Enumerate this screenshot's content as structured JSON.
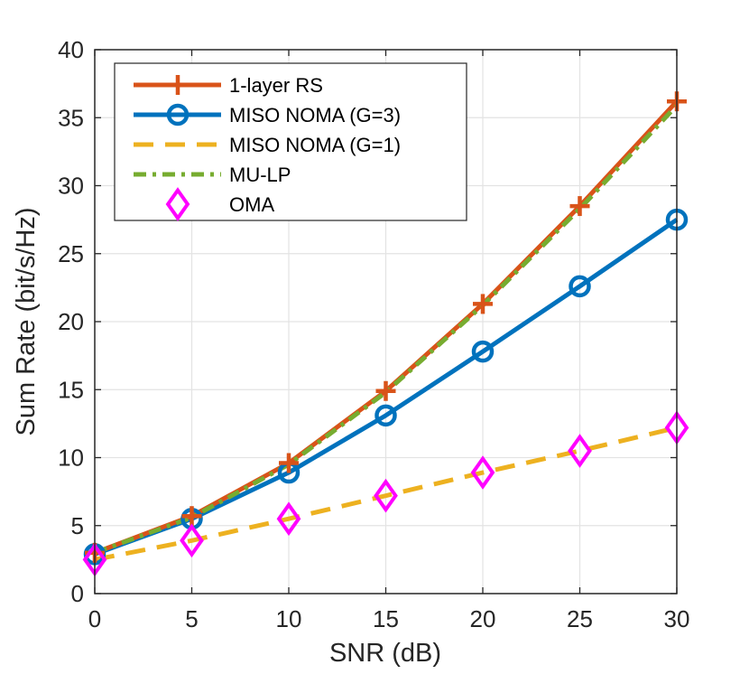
{
  "chart_data": {
    "type": "line",
    "title": "",
    "xlabel": "SNR (dB)",
    "ylabel": "Sum Rate (bit/s/Hz)",
    "xlim": [
      0,
      30
    ],
    "ylim": [
      0,
      40
    ],
    "xticks": [
      0,
      5,
      10,
      15,
      20,
      25,
      30
    ],
    "yticks": [
      0,
      5,
      10,
      15,
      20,
      25,
      30,
      35,
      40
    ],
    "grid": true,
    "legend_position": "top-left",
    "x": [
      0,
      5,
      10,
      15,
      20,
      25,
      30
    ],
    "series": [
      {
        "name": "1-layer RS",
        "color": "#D95319",
        "style": "solid",
        "marker": "plus",
        "values": [
          3.0,
          5.7,
          9.6,
          14.9,
          21.3,
          28.5,
          36.2
        ]
      },
      {
        "name": "MISO NOMA (G=3)",
        "color": "#0072BD",
        "style": "solid",
        "marker": "circle",
        "values": [
          2.9,
          5.5,
          8.9,
          13.1,
          17.8,
          22.6,
          27.5
        ]
      },
      {
        "name": "MISO NOMA (G=1)",
        "color": "#EDB120",
        "style": "dashed",
        "marker": "none",
        "values": [
          2.5,
          3.9,
          5.5,
          7.2,
          8.9,
          10.5,
          12.2
        ]
      },
      {
        "name": "MU-LP",
        "color": "#77AC30",
        "style": "dashdot",
        "marker": "none",
        "values": [
          3.0,
          5.6,
          9.5,
          14.8,
          21.2,
          28.3,
          35.9
        ]
      },
      {
        "name": "OMA",
        "color": "#FF00FF",
        "style": "none",
        "marker": "diamond",
        "values": [
          2.5,
          3.9,
          5.5,
          7.2,
          8.9,
          10.5,
          12.2
        ]
      }
    ]
  }
}
